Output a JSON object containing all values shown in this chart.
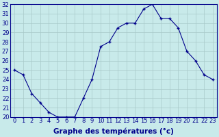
{
  "x": [
    0,
    1,
    2,
    3,
    4,
    5,
    6,
    7,
    8,
    9,
    10,
    11,
    12,
    13,
    14,
    15,
    16,
    17,
    18,
    19,
    20,
    21,
    22,
    23
  ],
  "y": [
    25.0,
    24.5,
    22.5,
    21.5,
    20.5,
    20.0,
    20.0,
    20.0,
    22.0,
    24.0,
    27.5,
    28.0,
    29.5,
    30.0,
    30.0,
    31.5,
    32.0,
    30.5,
    30.5,
    29.5,
    27.0,
    26.0,
    24.5,
    24.0
  ],
  "xlabel": "Graphe des températures (°c)",
  "ylim": [
    20,
    32
  ],
  "xlim": [
    -0.5,
    23.5
  ],
  "yticks": [
    20,
    21,
    22,
    23,
    24,
    25,
    26,
    27,
    28,
    29,
    30,
    31,
    32
  ],
  "xticks": [
    0,
    1,
    2,
    3,
    4,
    5,
    6,
    7,
    8,
    9,
    10,
    11,
    12,
    13,
    14,
    15,
    16,
    17,
    18,
    19,
    20,
    21,
    22,
    23
  ],
  "line_color": "#00008b",
  "marker_color": "#00008b",
  "bg_color": "#c8eaea",
  "grid_color": "#a8c8c8",
  "xlabel_color": "#00008b",
  "xlabel_fontsize": 7.5,
  "tick_fontsize": 6.0,
  "tick_color": "#00008b"
}
